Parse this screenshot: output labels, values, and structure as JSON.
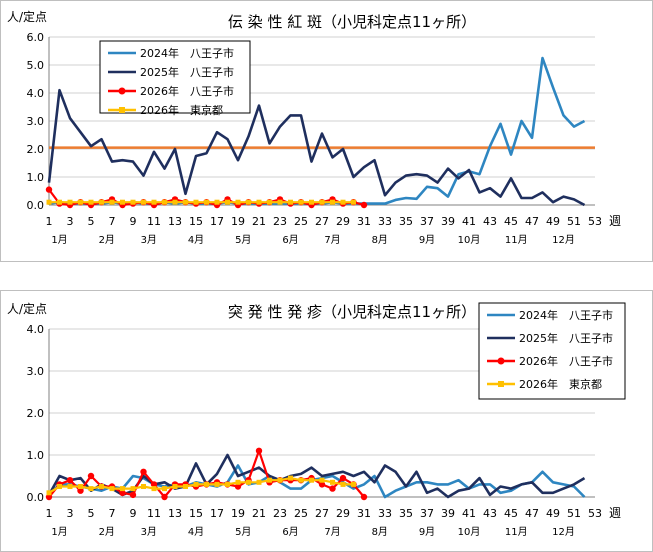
{
  "chart_data": [
    {
      "type": "line",
      "title": "伝 染 性 紅 斑（小児科定点11ヶ所）",
      "ylabel": "人/定点",
      "xlabel": "週",
      "ylim": [
        0,
        6
      ],
      "yticks": [
        "0.0",
        "1.0",
        "2.0",
        "3.0",
        "4.0",
        "5.0",
        "6.0"
      ],
      "xlim": [
        1,
        53
      ],
      "xticks": [
        1,
        3,
        5,
        7,
        9,
        11,
        13,
        15,
        17,
        19,
        21,
        23,
        25,
        27,
        29,
        31,
        33,
        35,
        37,
        39,
        41,
        43,
        45,
        47,
        49,
        51,
        53
      ],
      "months": [
        {
          "label": "1月",
          "week": 2
        },
        {
          "label": "2月",
          "week": 6.5
        },
        {
          "label": "3月",
          "week": 10.5
        },
        {
          "label": "4月",
          "week": 15
        },
        {
          "label": "5月",
          "week": 19.5
        },
        {
          "label": "6月",
          "week": 24
        },
        {
          "label": "7月",
          "week": 28
        },
        {
          "label": "8月",
          "week": 32.5
        },
        {
          "label": "9月",
          "week": 37
        },
        {
          "label": "10月",
          "week": 41
        },
        {
          "label": "11月",
          "week": 45.5
        },
        {
          "label": "12月",
          "week": 50
        }
      ],
      "grid": true,
      "legend_position": "top-left",
      "reference_line": {
        "value": 2.05,
        "color": "#ed7d31"
      },
      "series": [
        {
          "name": "2024年　八王子市",
          "color": "#2e86c1",
          "marker": "none",
          "values": [
            0.05,
            0.1,
            0.05,
            0.05,
            0.05,
            0.05,
            0.1,
            0.05,
            0.1,
            0.05,
            0.05,
            0.1,
            0.05,
            0.1,
            0.05,
            0.05,
            0.05,
            0.1,
            0.05,
            0.05,
            0.05,
            0.05,
            0.05,
            0.05,
            0.05,
            0.05,
            0.05,
            0.1,
            0.05,
            0.05,
            0.05,
            0.05,
            0.05,
            0.18,
            0.25,
            0.22,
            0.65,
            0.6,
            0.3,
            1.1,
            1.2,
            1.1,
            2.1,
            2.9,
            1.8,
            3.0,
            2.4,
            5.25,
            4.2,
            3.2,
            2.8,
            3.0
          ]
        },
        {
          "name": "2025年　八王子市",
          "color": "#1f2f5e",
          "marker": "none",
          "values": [
            0.8,
            4.1,
            3.1,
            2.6,
            2.1,
            2.35,
            1.55,
            1.6,
            1.55,
            1.05,
            1.9,
            1.3,
            2.0,
            0.4,
            1.75,
            1.85,
            2.6,
            2.35,
            1.6,
            2.45,
            3.55,
            2.2,
            2.8,
            3.2,
            3.2,
            1.55,
            2.55,
            1.7,
            2.0,
            1.0,
            1.35,
            1.6,
            0.35,
            0.8,
            1.05,
            1.1,
            1.05,
            0.8,
            1.3,
            0.95,
            1.25,
            0.45,
            0.6,
            0.3,
            0.95,
            0.25,
            0.25,
            0.45,
            0.1,
            0.3,
            0.2,
            0.0
          ]
        },
        {
          "name": "2026年　八王子市",
          "color": "#ff0000",
          "marker": "circle",
          "values": [
            0.55,
            0.05,
            0.0,
            0.1,
            0.0,
            0.1,
            0.2,
            0.0,
            0.05,
            0.1,
            0.0,
            0.1,
            0.2,
            0.1,
            0.05,
            0.1,
            0.0,
            0.2,
            0.0,
            0.1,
            0.05,
            0.1,
            0.2,
            0.05,
            0.1,
            0.0,
            0.1,
            0.2,
            0.05,
            0.1,
            0.0
          ]
        },
        {
          "name": "2026年　東京都",
          "color": "#ffc000",
          "marker": "square",
          "values": [
            0.1,
            0.1,
            0.1,
            0.1,
            0.1,
            0.1,
            0.1,
            0.1,
            0.1,
            0.1,
            0.1,
            0.1,
            0.1,
            0.1,
            0.1,
            0.1,
            0.1,
            0.1,
            0.1,
            0.1,
            0.1,
            0.1,
            0.1,
            0.1,
            0.1,
            0.1,
            0.1,
            0.1,
            0.1,
            0.1
          ]
        }
      ]
    },
    {
      "type": "line",
      "title": "突 発 性 発 疹（小児科定点11ヶ所）",
      "ylabel": "人/定点",
      "xlabel": "週",
      "ylim": [
        0,
        4
      ],
      "yticks": [
        "0.0",
        "1.0",
        "2.0",
        "3.0",
        "4.0"
      ],
      "xlim": [
        1,
        53
      ],
      "xticks": [
        1,
        3,
        5,
        7,
        9,
        11,
        13,
        15,
        17,
        19,
        21,
        23,
        25,
        27,
        29,
        31,
        33,
        35,
        37,
        39,
        41,
        43,
        45,
        47,
        49,
        51,
        53
      ],
      "months": [
        {
          "label": "1月",
          "week": 2
        },
        {
          "label": "2月",
          "week": 6.5
        },
        {
          "label": "3月",
          "week": 10.5
        },
        {
          "label": "4月",
          "week": 15
        },
        {
          "label": "5月",
          "week": 19.5
        },
        {
          "label": "6月",
          "week": 24
        },
        {
          "label": "7月",
          "week": 28
        },
        {
          "label": "8月",
          "week": 32.5
        },
        {
          "label": "9月",
          "week": 37
        },
        {
          "label": "10月",
          "week": 41
        },
        {
          "label": "11月",
          "week": 45.5
        },
        {
          "label": "12月",
          "week": 50
        }
      ],
      "grid": true,
      "legend_position": "top-right",
      "series": [
        {
          "name": "2024年　八王子市",
          "color": "#2e86c1",
          "marker": "none",
          "values": [
            0.05,
            0.3,
            0.3,
            0.25,
            0.2,
            0.15,
            0.25,
            0.2,
            0.5,
            0.45,
            0.3,
            0.25,
            0.3,
            0.25,
            0.35,
            0.3,
            0.25,
            0.35,
            0.75,
            0.3,
            0.35,
            0.5,
            0.35,
            0.2,
            0.2,
            0.4,
            0.45,
            0.5,
            0.35,
            0.2,
            0.3,
            0.5,
            0.0,
            0.15,
            0.25,
            0.35,
            0.35,
            0.3,
            0.3,
            0.4,
            0.2,
            0.3,
            0.3,
            0.1,
            0.15,
            0.3,
            0.35,
            0.6,
            0.35,
            0.3,
            0.25,
            0.0
          ]
        },
        {
          "name": "2025年　八王子市",
          "color": "#1f2f5e",
          "marker": "none",
          "values": [
            0.05,
            0.5,
            0.4,
            0.45,
            0.15,
            0.3,
            0.2,
            0.05,
            0.15,
            0.5,
            0.3,
            0.35,
            0.2,
            0.25,
            0.8,
            0.3,
            0.55,
            1.0,
            0.5,
            0.6,
            0.7,
            0.5,
            0.4,
            0.5,
            0.55,
            0.7,
            0.5,
            0.55,
            0.6,
            0.5,
            0.6,
            0.35,
            0.75,
            0.6,
            0.25,
            0.6,
            0.1,
            0.2,
            0.0,
            0.15,
            0.2,
            0.45,
            0.05,
            0.25,
            0.2,
            0.3,
            0.35,
            0.1,
            0.1,
            0.2,
            0.3,
            0.45
          ]
        },
        {
          "name": "2026年　八王子市",
          "color": "#ff0000",
          "marker": "circle",
          "values": [
            0.0,
            0.3,
            0.4,
            0.15,
            0.5,
            0.25,
            0.25,
            0.1,
            0.05,
            0.6,
            0.3,
            0.0,
            0.3,
            0.3,
            0.25,
            0.3,
            0.35,
            0.3,
            0.25,
            0.4,
            1.1,
            0.35,
            0.4,
            0.4,
            0.4,
            0.45,
            0.3,
            0.2,
            0.45,
            0.3,
            0.0
          ]
        },
        {
          "name": "2026年　東京都",
          "color": "#ffc000",
          "marker": "square",
          "values": [
            0.1,
            0.25,
            0.25,
            0.25,
            0.2,
            0.25,
            0.2,
            0.2,
            0.2,
            0.25,
            0.2,
            0.2,
            0.25,
            0.25,
            0.3,
            0.3,
            0.3,
            0.3,
            0.35,
            0.35,
            0.35,
            0.4,
            0.4,
            0.45,
            0.4,
            0.4,
            0.4,
            0.35,
            0.3,
            0.3
          ]
        }
      ]
    }
  ]
}
